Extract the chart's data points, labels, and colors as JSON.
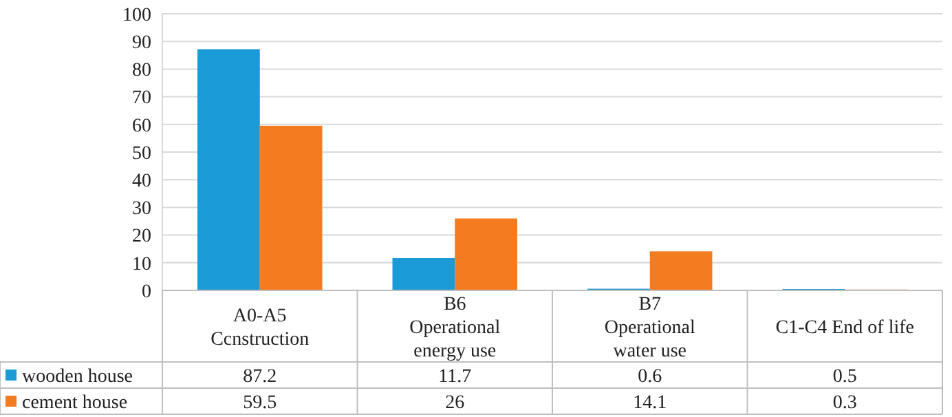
{
  "chart_data": {
    "type": "bar",
    "categories": [
      "A0-A5 Ccnstruction",
      "B6 Operational energy use",
      "B7 Operational water use",
      "C1-C4 End of life"
    ],
    "series": [
      {
        "name": "wooden house",
        "color": "#1a9ad6",
        "values": [
          87.2,
          11.7,
          0.6,
          0.5
        ]
      },
      {
        "name": "cement house",
        "color": "#f47b20",
        "values": [
          59.5,
          26,
          14.1,
          0.3
        ]
      }
    ],
    "ylim": [
      0,
      100
    ],
    "yticks": [
      0,
      10,
      20,
      30,
      40,
      50,
      60,
      70,
      80,
      90,
      100
    ],
    "grid": "y",
    "legend": "bottom",
    "data_labels": true
  }
}
